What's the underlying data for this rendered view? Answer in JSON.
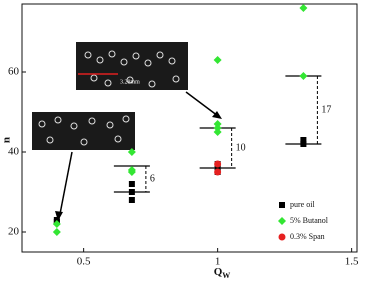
{
  "chart_data": {
    "type": "scatter",
    "x_label": "Q",
    "x_label_sub": "W",
    "y_label": "n",
    "xlim": [
      0.27,
      1.52
    ],
    "xticks": [
      0.5,
      1.0,
      1.5
    ],
    "ylim": [
      15,
      77
    ],
    "yticks": [
      20,
      40,
      60
    ],
    "legend": "lower right",
    "series": [
      {
        "name": "pure oil",
        "color": "#000000",
        "marker": "square",
        "x": [
          0.4,
          0.4,
          0.68,
          0.68,
          0.68,
          1.0,
          1.0,
          1.0,
          1.32,
          1.32
        ],
        "values": [
          23,
          22.5,
          32,
          30,
          28,
          37,
          36,
          35,
          43,
          42
        ]
      },
      {
        "name": "5% Butanol",
        "color": "#33e633",
        "marker": "diamond",
        "x": [
          0.4,
          0.4,
          0.68,
          0.68,
          0.68,
          1.0,
          1.0,
          1.0,
          1.0,
          1.32,
          1.32
        ],
        "values": [
          22,
          20,
          40,
          35.5,
          35,
          63,
          47,
          46,
          45,
          76,
          59
        ]
      },
      {
        "name": "0.3% Span",
        "color": "#e62020",
        "marker": "circle",
        "x": [
          1.0,
          1.0
        ],
        "values": [
          37,
          35
        ]
      }
    ],
    "brackets": [
      {
        "x": 0.68,
        "low": 30,
        "high": 36.5,
        "label": "6"
      },
      {
        "x": 1.0,
        "low": 36,
        "high": 46,
        "label": "10"
      },
      {
        "x": 1.32,
        "low": 42,
        "high": 59,
        "label": "17"
      }
    ],
    "inset_label": "3.28mm"
  }
}
